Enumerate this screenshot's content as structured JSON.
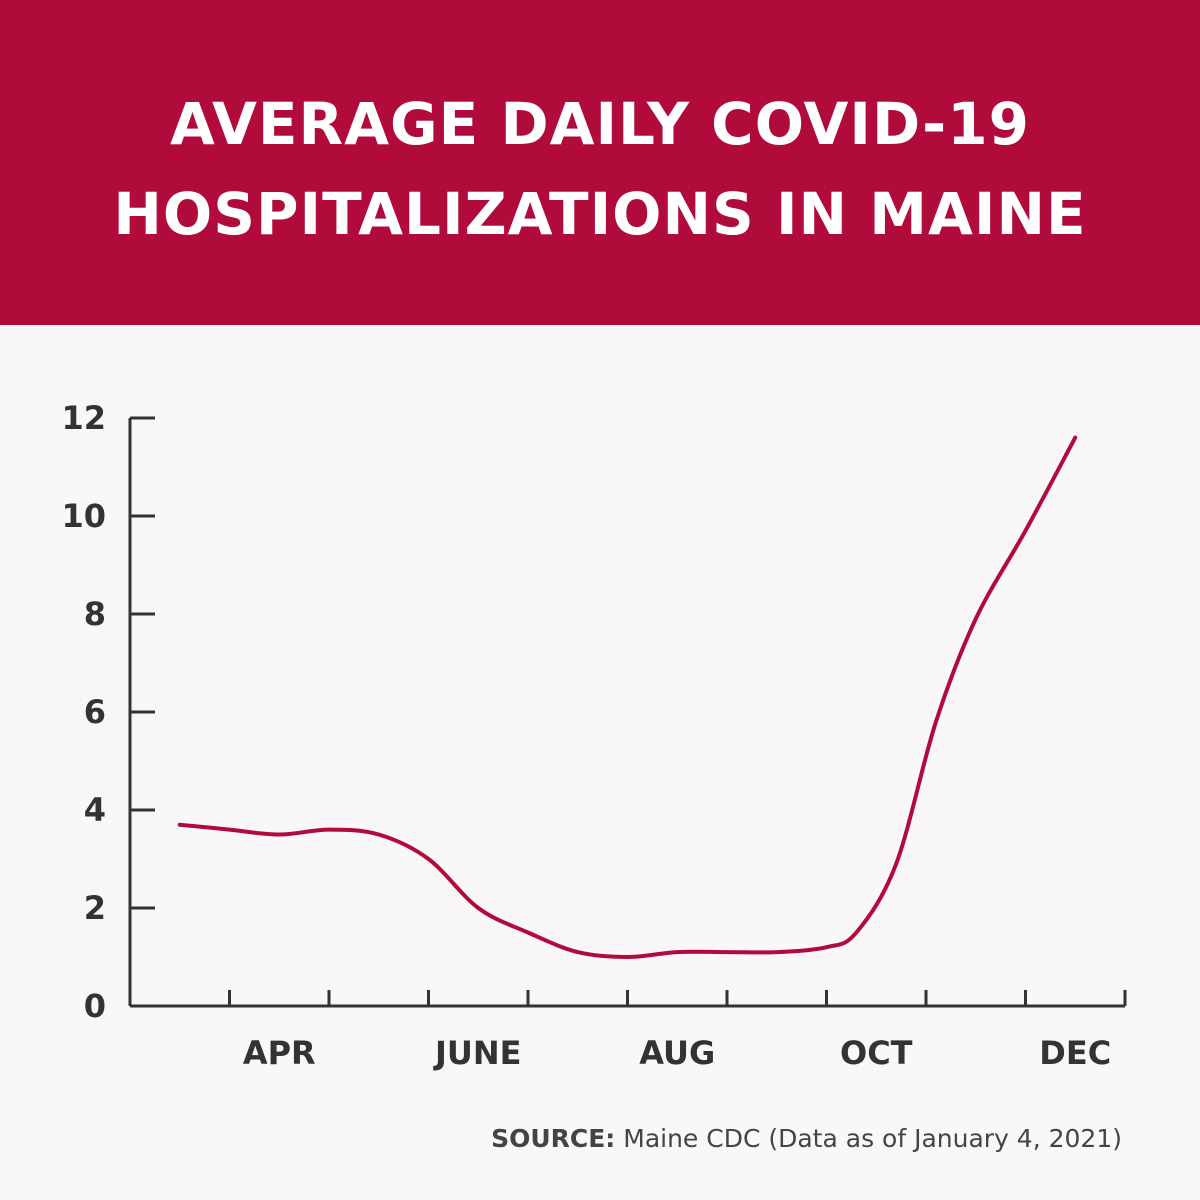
{
  "chart_data": {
    "type": "line",
    "title_lines": [
      "AVERAGE DAILY COVID-19",
      "HOSPITALIZATIONS IN MAINE"
    ],
    "xlabel": "",
    "ylabel": "",
    "x_tick_labels": [
      "APR",
      "JUNE",
      "AUG",
      "OCT",
      "DEC"
    ],
    "x_tick_label_positions": [
      1.5,
      3.5,
      5.5,
      7.5,
      9.5
    ],
    "x_minor_ticks": [
      1,
      2,
      3,
      4,
      5,
      6,
      7,
      8,
      9,
      10
    ],
    "xlim": [
      0,
      10
    ],
    "ylim": [
      0,
      12
    ],
    "y_ticks": [
      0,
      2,
      4,
      6,
      8,
      10,
      12
    ],
    "series": [
      {
        "name": "Average daily hospitalizations",
        "color": "#b00b3a",
        "x": [
          0.5,
          1.0,
          1.5,
          2.0,
          2.5,
          3.0,
          3.5,
          4.0,
          4.5,
          5.0,
          5.5,
          6.0,
          6.5,
          7.0,
          7.3,
          7.7,
          8.1,
          8.5,
          9.0,
          9.5
        ],
        "values": [
          3.7,
          3.6,
          3.5,
          3.6,
          3.5,
          3.0,
          2.0,
          1.5,
          1.1,
          1.0,
          1.1,
          1.1,
          1.1,
          1.2,
          1.5,
          2.9,
          5.8,
          7.9,
          9.7,
          11.6
        ]
      }
    ]
  },
  "source": {
    "label": "SOURCE:",
    "text": " Maine CDC (Data as of January 4, 2021)"
  },
  "colors": {
    "header_bg": "#b00b3a",
    "line": "#b00b3a",
    "axis": "#333333",
    "background": "#faf7f8"
  }
}
